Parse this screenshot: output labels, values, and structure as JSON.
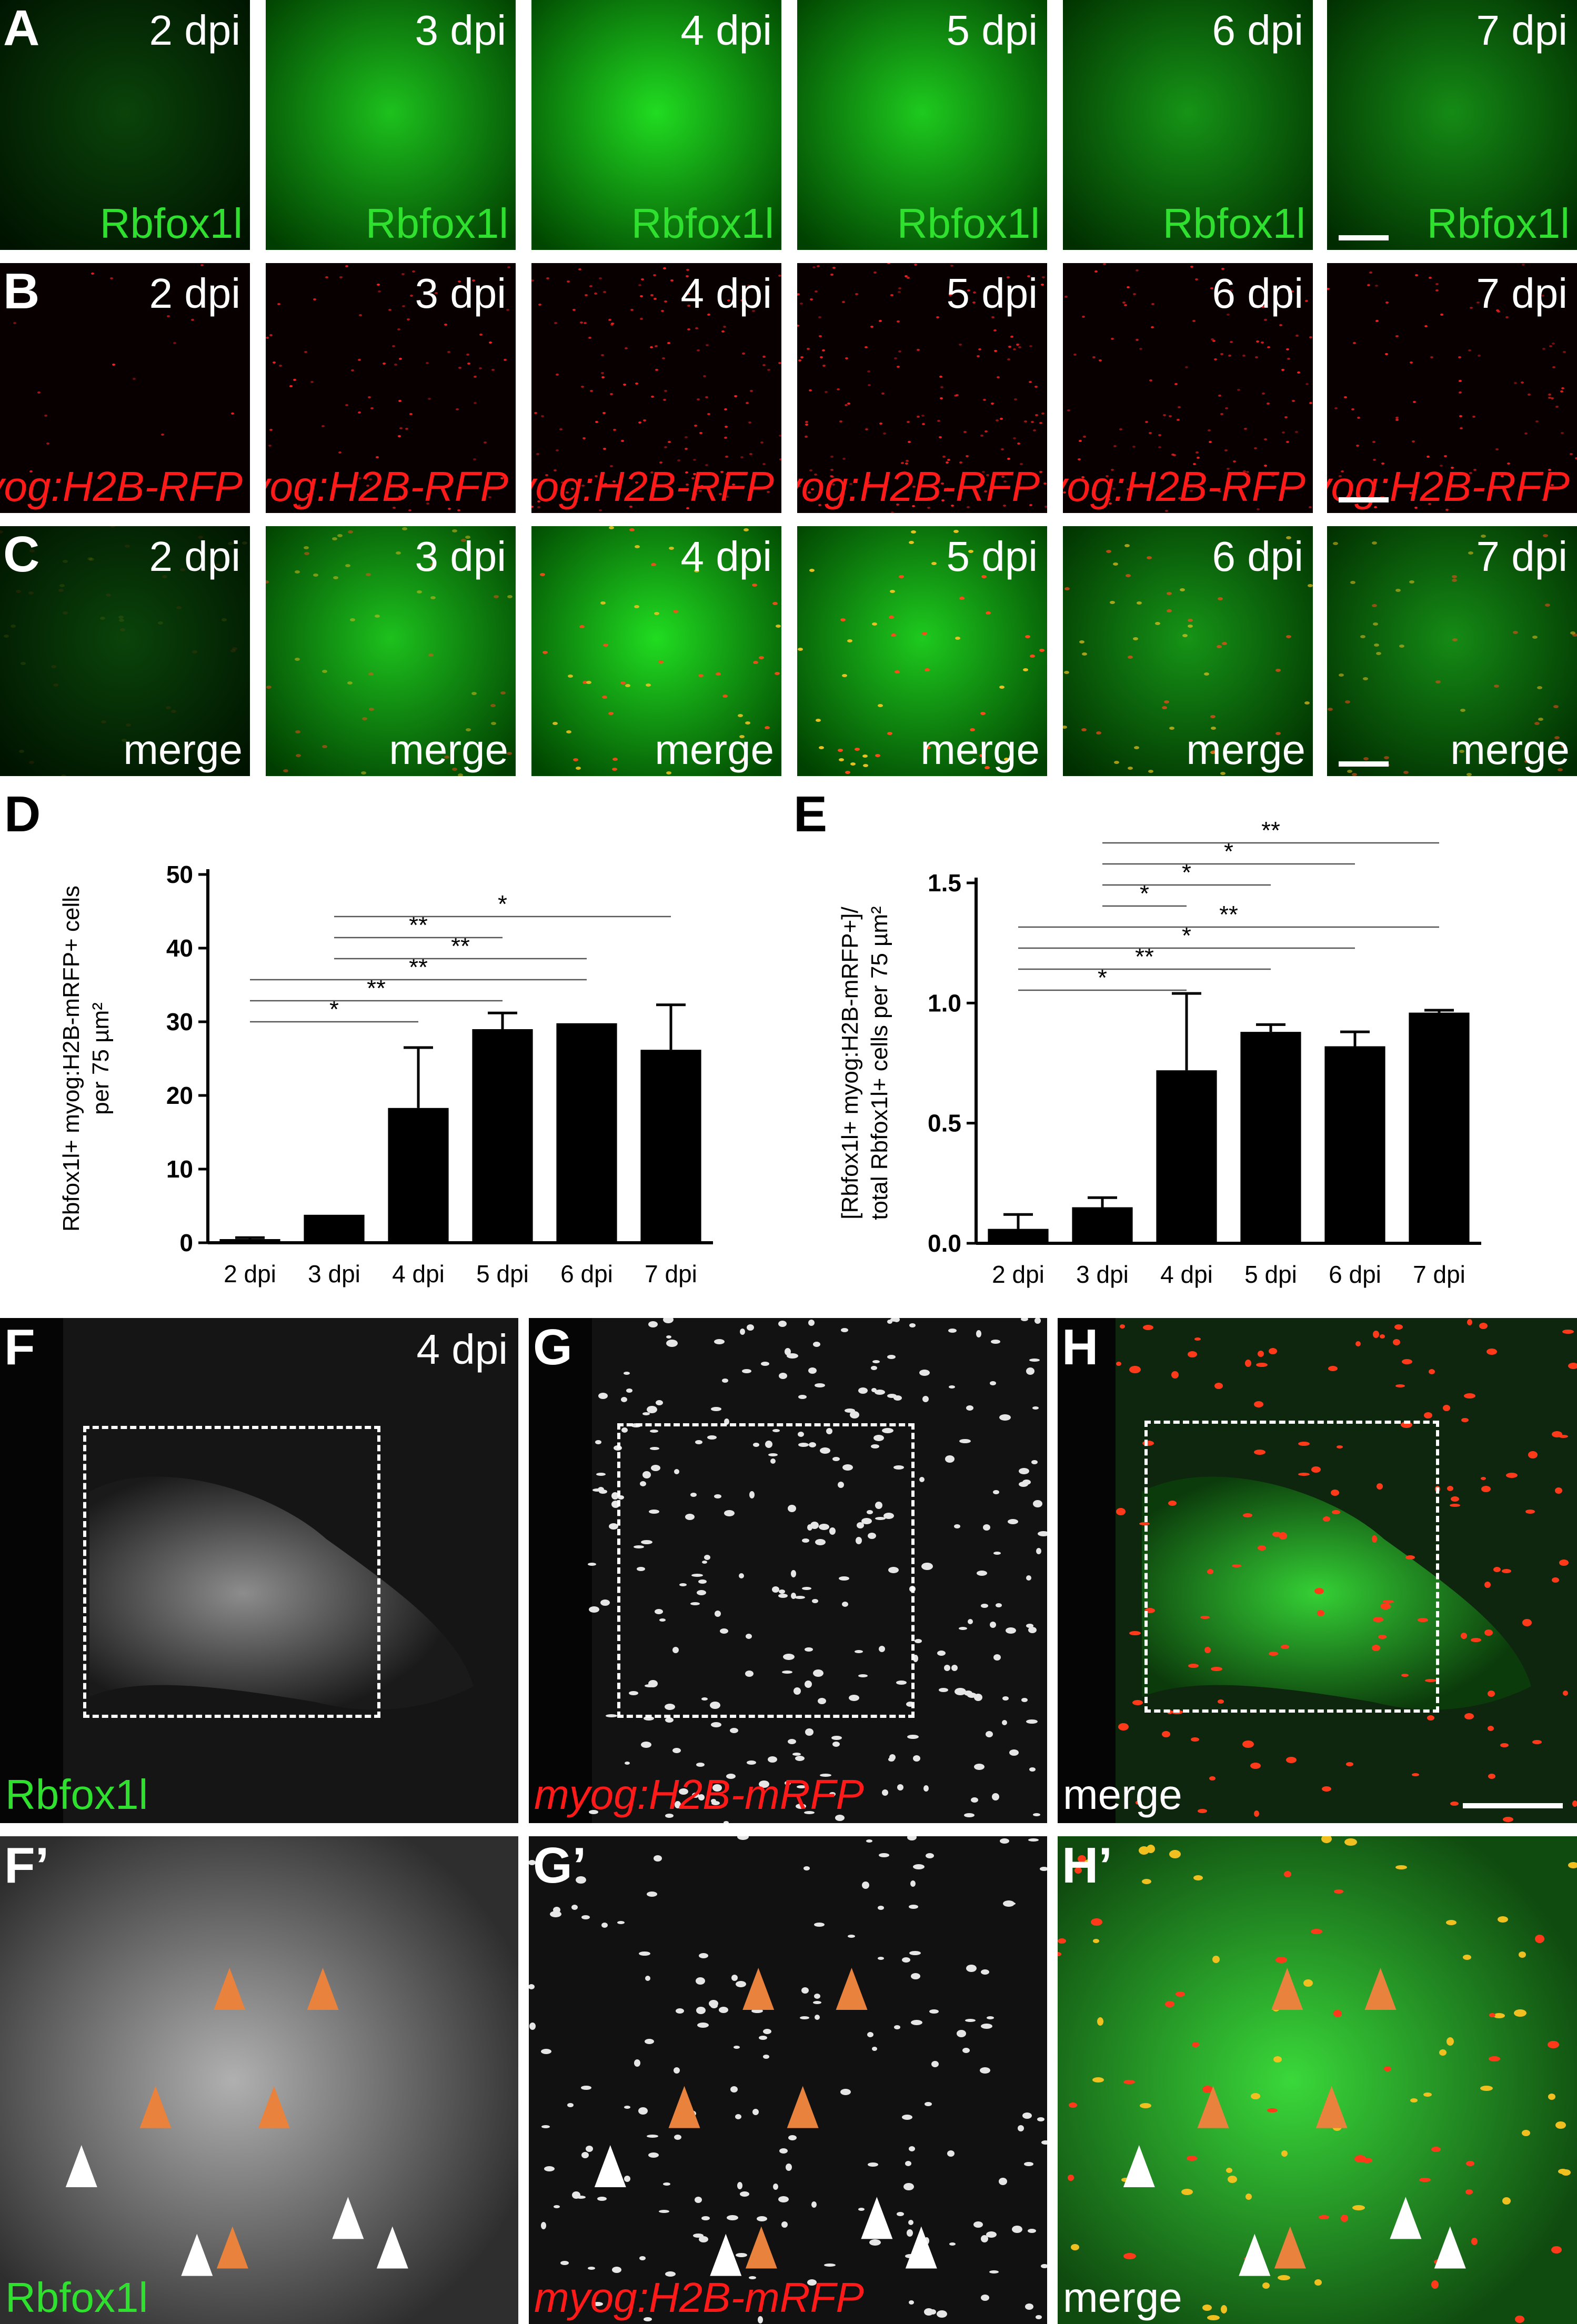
{
  "timepoints": [
    "2 dpi",
    "3 dpi",
    "4 dpi",
    "5 dpi",
    "6 dpi",
    "7 dpi"
  ],
  "rows": {
    "A": {
      "letter": "A",
      "marker": "Rbfox1l"
    },
    "B": {
      "letter": "B",
      "marker": "myog:H2B-RFP"
    },
    "C": {
      "letter": "C",
      "marker": "merge"
    }
  },
  "lower": {
    "F": {
      "letter": "F",
      "timepoint": "4 dpi",
      "marker": "Rbfox1l"
    },
    "G": {
      "letter": "G",
      "marker": "myog:H2B-mRFP"
    },
    "H": {
      "letter": "H",
      "marker": "merge"
    },
    "F2": {
      "letter": "F’",
      "marker": "Rbfox1l"
    },
    "G2": {
      "letter": "G’",
      "marker": "myog:H2B-mRFP"
    },
    "H2": {
      "letter": "H’",
      "marker": "merge"
    }
  },
  "colors": {
    "green": "#2fe02f",
    "red": "#ff1a1a",
    "arrow_orange": "#e8823c",
    "arrow_white": "#ffffff"
  },
  "chart_data": [
    {
      "panel": "D",
      "type": "bar",
      "categories": [
        "2 dpi",
        "3 dpi",
        "4 dpi",
        "5 dpi",
        "6 dpi",
        "7 dpi"
      ],
      "values": [
        0.5,
        3.8,
        18.3,
        29.0,
        29.8,
        26.2
      ],
      "errors": [
        0.2,
        0.0,
        8.2,
        2.2,
        0.0,
        6.1
      ],
      "ylabel_lines": [
        "Rbfox1l+ myog:H2B-mRFP+ cells",
        "per 75 µm²"
      ],
      "ylim": [
        0,
        50
      ],
      "yticks": [
        0,
        10,
        20,
        30,
        40,
        50
      ],
      "significance": [
        {
          "from": 0,
          "to": 2,
          "label": "*"
        },
        {
          "from": 0,
          "to": 3,
          "label": "**"
        },
        {
          "from": 0,
          "to": 4,
          "label": "**"
        },
        {
          "from": 1,
          "to": 3,
          "label": "**"
        },
        {
          "from": 1,
          "to": 4,
          "label": "**"
        },
        {
          "from": 1,
          "to": 5,
          "label": "*"
        }
      ]
    },
    {
      "panel": "E",
      "type": "bar",
      "categories": [
        "2 dpi",
        "3 dpi",
        "4 dpi",
        "5 dpi",
        "6 dpi",
        "7 dpi"
      ],
      "values": [
        0.06,
        0.15,
        0.72,
        0.88,
        0.82,
        0.96
      ],
      "errors": [
        0.06,
        0.04,
        0.32,
        0.03,
        0.06,
        0.01
      ],
      "ylabel_lines": [
        "[Rbfox1l+ myog:H2B-mRFP+]/",
        "total Rbfox1l+ cells per 75 µm²"
      ],
      "ylim": [
        0,
        1.5
      ],
      "yticks": [
        0.0,
        0.5,
        1.0,
        1.5
      ],
      "significance": [
        {
          "from": 0,
          "to": 2,
          "label": "*"
        },
        {
          "from": 0,
          "to": 3,
          "label": "**"
        },
        {
          "from": 0,
          "to": 4,
          "label": "*"
        },
        {
          "from": 0,
          "to": 5,
          "label": "**"
        },
        {
          "from": 1,
          "to": 2,
          "label": "*"
        },
        {
          "from": 1,
          "to": 3,
          "label": "*"
        },
        {
          "from": 1,
          "to": 4,
          "label": "*"
        },
        {
          "from": 1,
          "to": 5,
          "label": "**"
        }
      ]
    }
  ]
}
